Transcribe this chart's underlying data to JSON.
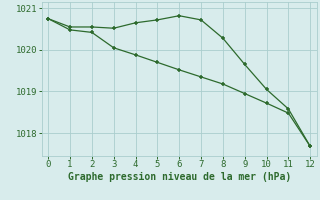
{
  "x": [
    0,
    1,
    2,
    3,
    4,
    5,
    6,
    7,
    8,
    9,
    10,
    11,
    12
  ],
  "line1": [
    1020.75,
    1020.55,
    1020.55,
    1020.52,
    1020.65,
    1020.72,
    1020.82,
    1020.72,
    1020.28,
    1019.65,
    1019.05,
    1018.58,
    1017.68
  ],
  "line2": [
    1020.75,
    1020.48,
    1020.42,
    1020.05,
    1019.88,
    1019.7,
    1019.52,
    1019.35,
    1019.18,
    1018.95,
    1018.72,
    1018.48,
    1017.68
  ],
  "line_color": "#2d6a2d",
  "bg_color": "#d8ecec",
  "grid_color": "#aacece",
  "xlabel": "Graphe pression niveau de la mer (hPa)",
  "xlabel_color": "#2d6a2d",
  "tick_color": "#2d6a2d",
  "ylim_min": 1017.45,
  "ylim_max": 1021.15,
  "yticks": [
    1018,
    1019,
    1020,
    1021
  ],
  "xticks": [
    0,
    1,
    2,
    3,
    4,
    5,
    6,
    7,
    8,
    9,
    10,
    11,
    12
  ]
}
